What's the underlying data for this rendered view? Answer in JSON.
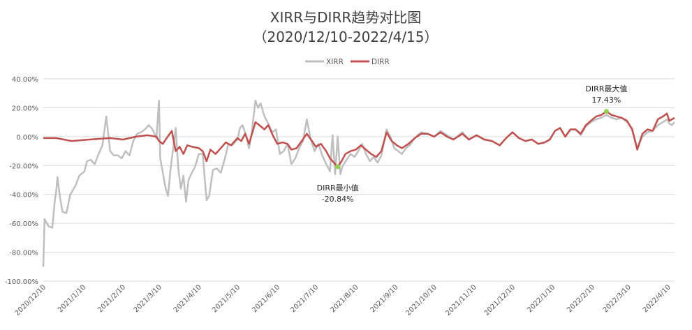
{
  "chart_data": {
    "type": "line",
    "title": "XIRR与DIRR趋势对比图",
    "subtitle": "（2020/12/10-2022/4/15）",
    "legend_position": "top",
    "grid": true,
    "x_range": [
      "2020/12/10",
      "2022/4/15"
    ],
    "y_range": [
      -100,
      40
    ],
    "y_ticks": [
      "40.00%",
      "20.00%",
      "0.00%",
      "-20.00%",
      "-40.00%",
      "-60.00%",
      "-80.00%",
      "-100.00%"
    ],
    "y_tick_values": [
      40,
      20,
      0,
      -20,
      -40,
      -60,
      -80,
      -100
    ],
    "x_ticks": [
      "2020/12/10",
      "2021/1/10",
      "2021/2/10",
      "2021/3/10",
      "2021/4/10",
      "2021/5/10",
      "2021/6/10",
      "2021/7/10",
      "2021/8/10",
      "2021/9/10",
      "2021/10/10",
      "2021/11/10",
      "2021/12/10",
      "2022/1/10",
      "2022/2/10",
      "2022/3/10",
      "2022/4/10"
    ],
    "series": [
      {
        "name": "XIRR",
        "color": "#bfbfbf",
        "points": [
          [
            "2020/12/10",
            -90
          ],
          [
            "2020/12/11",
            -57
          ],
          [
            "2020/12/14",
            -62
          ],
          [
            "2020/12/17",
            -63
          ],
          [
            "2020/12/19",
            -44
          ],
          [
            "2020/12/20",
            -38
          ],
          [
            "2020/12/21",
            -28
          ],
          [
            "2020/12/23",
            -42
          ],
          [
            "2020/12/25",
            -52
          ],
          [
            "2020/12/28",
            -53
          ],
          [
            "2020/12/31",
            -40
          ],
          [
            "2021/1/4",
            -34
          ],
          [
            "2021/1/7",
            -27
          ],
          [
            "2021/1/11",
            -24
          ],
          [
            "2021/1/13",
            -17
          ],
          [
            "2021/1/16",
            -16
          ],
          [
            "2021/1/19",
            -19
          ],
          [
            "2021/1/22",
            -12
          ],
          [
            "2021/1/25",
            -6
          ],
          [
            "2021/1/28",
            14
          ],
          [
            "2021/1/31",
            -10
          ],
          [
            "2021/2/3",
            -13
          ],
          [
            "2021/2/6",
            -13
          ],
          [
            "2021/2/9",
            -15
          ],
          [
            "2021/2/12",
            -10
          ],
          [
            "2021/2/15",
            -13
          ],
          [
            "2021/2/18",
            -3
          ],
          [
            "2021/2/21",
            2
          ],
          [
            "2021/2/24",
            3
          ],
          [
            "2021/2/27",
            5
          ],
          [
            "2021/3/2",
            8
          ],
          [
            "2021/3/5",
            5
          ],
          [
            "2021/3/8",
            -1
          ],
          [
            "2021/3/10",
            25
          ],
          [
            "2021/3/11",
            -15
          ],
          [
            "2021/3/13",
            -25
          ],
          [
            "2021/3/15",
            -35
          ],
          [
            "2021/3/17",
            -41
          ],
          [
            "2021/3/19",
            -22
          ],
          [
            "2021/3/21",
            -8
          ],
          [
            "2021/3/23",
            6
          ],
          [
            "2021/3/25",
            -22
          ],
          [
            "2021/3/27",
            -36
          ],
          [
            "2021/3/29",
            -27
          ],
          [
            "2021/3/31",
            -45
          ],
          [
            "2021/4/2",
            -30
          ],
          [
            "2021/4/4",
            -26
          ],
          [
            "2021/4/7",
            -21
          ],
          [
            "2021/4/10",
            -12
          ],
          [
            "2021/4/13",
            -12
          ],
          [
            "2021/4/16",
            -44
          ],
          [
            "2021/4/18",
            -41
          ],
          [
            "2021/4/21",
            -23
          ],
          [
            "2021/4/24",
            -22
          ],
          [
            "2021/4/27",
            -25
          ],
          [
            "2021/4/30",
            -16
          ],
          [
            "2021/5/3",
            -5
          ],
          [
            "2021/5/6",
            -6
          ],
          [
            "2021/5/10",
            -2
          ],
          [
            "2021/5/12",
            6
          ],
          [
            "2021/5/14",
            8
          ],
          [
            "2021/5/17",
            0
          ],
          [
            "2021/5/19",
            -8
          ],
          [
            "2021/5/21",
            2
          ],
          [
            "2021/5/24",
            25
          ],
          [
            "2021/5/26",
            20
          ],
          [
            "2021/5/28",
            23
          ],
          [
            "2021/5/31",
            14
          ],
          [
            "2021/6/3",
            9
          ],
          [
            "2021/6/6",
            3
          ],
          [
            "2021/6/9",
            5
          ],
          [
            "2021/6/12",
            -12
          ],
          [
            "2021/6/15",
            -10
          ],
          [
            "2021/6/18",
            -5
          ],
          [
            "2021/6/21",
            -19
          ],
          [
            "2021/6/24",
            -15
          ],
          [
            "2021/6/27",
            -8
          ],
          [
            "2021/6/30",
            -3
          ],
          [
            "2021/7/3",
            12
          ],
          [
            "2021/7/6",
            -2
          ],
          [
            "2021/7/9",
            -10
          ],
          [
            "2021/7/12",
            -5
          ],
          [
            "2021/7/15",
            -13
          ],
          [
            "2021/7/18",
            -19
          ],
          [
            "2021/7/21",
            -24
          ],
          [
            "2021/7/23",
            1
          ],
          [
            "2021/7/25",
            -26
          ],
          [
            "2021/7/27",
            0
          ],
          [
            "2021/7/29",
            -26
          ],
          [
            "2021/7/31",
            -20
          ],
          [
            "2021/8/3",
            -16
          ],
          [
            "2021/8/6",
            -12
          ],
          [
            "2021/8/9",
            -14
          ],
          [
            "2021/8/12",
            -10
          ],
          [
            "2021/8/15",
            -5
          ],
          [
            "2021/8/18",
            -12
          ],
          [
            "2021/8/21",
            -17
          ],
          [
            "2021/8/24",
            -14
          ],
          [
            "2021/8/27",
            -18
          ],
          [
            "2021/8/30",
            -13
          ],
          [
            "2021/9/3",
            5
          ],
          [
            "2021/9/6",
            0
          ],
          [
            "2021/9/9",
            -8
          ],
          [
            "2021/9/12",
            -10
          ],
          [
            "2021/9/15",
            -12
          ],
          [
            "2021/9/18",
            -8
          ],
          [
            "2021/9/21",
            -6
          ],
          [
            "2021/9/24",
            -2
          ],
          [
            "2021/9/27",
            1
          ],
          [
            "2021/9/30",
            3
          ],
          [
            "2021/10/5",
            2
          ],
          [
            "2021/10/10",
            0
          ],
          [
            "2021/10/15",
            4
          ],
          [
            "2021/10/20",
            1
          ],
          [
            "2021/10/25",
            -2
          ],
          [
            "2021/11/1",
            3
          ],
          [
            "2021/11/6",
            -2
          ],
          [
            "2021/11/12",
            1
          ],
          [
            "2021/11/18",
            -2
          ],
          [
            "2021/11/24",
            -3
          ],
          [
            "2021/11/30",
            -6
          ],
          [
            "2021/12/5",
            -1
          ],
          [
            "2021/12/10",
            3
          ],
          [
            "2021/12/15",
            -1
          ],
          [
            "2021/12/20",
            -3
          ],
          [
            "2021/12/25",
            -2
          ],
          [
            "2021/12/30",
            -5
          ],
          [
            "2022/1/4",
            -4
          ],
          [
            "2022/1/8",
            -2
          ],
          [
            "2022/1/12",
            4
          ],
          [
            "2022/1/16",
            6
          ],
          [
            "2022/1/20",
            0
          ],
          [
            "2022/1/24",
            5
          ],
          [
            "2022/1/28",
            5
          ],
          [
            "2022/2/1",
            1
          ],
          [
            "2022/2/5",
            7
          ],
          [
            "2022/2/9",
            10
          ],
          [
            "2022/2/13",
            12
          ],
          [
            "2022/2/17",
            13
          ],
          [
            "2022/2/21",
            15
          ],
          [
            "2022/2/25",
            13
          ],
          [
            "2022/3/1",
            12
          ],
          [
            "2022/3/5",
            13
          ],
          [
            "2022/3/9",
            10
          ],
          [
            "2022/3/13",
            6
          ],
          [
            "2022/3/17",
            -8
          ],
          [
            "2022/3/21",
            0
          ],
          [
            "2022/3/25",
            3
          ],
          [
            "2022/3/29",
            4
          ],
          [
            "2022/4/2",
            8
          ],
          [
            "2022/4/6",
            10
          ],
          [
            "2022/4/9",
            12
          ],
          [
            "2022/4/11",
            9
          ],
          [
            "2022/4/13",
            8
          ],
          [
            "2022/4/15",
            10
          ]
        ]
      },
      {
        "name": "DIRR",
        "color": "#c0504d",
        "points": [
          [
            "2020/12/10",
            -1
          ],
          [
            "2020/12/20",
            -1
          ],
          [
            "2021/1/1",
            -3
          ],
          [
            "2021/1/15",
            -2
          ],
          [
            "2021/1/31",
            -1
          ],
          [
            "2021/2/10",
            -2
          ],
          [
            "2021/2/20",
            0
          ],
          [
            "2021/3/1",
            1
          ],
          [
            "2021/3/8",
            0
          ],
          [
            "2021/3/10",
            -3
          ],
          [
            "2021/3/13",
            -5
          ],
          [
            "2021/3/16",
            -1
          ],
          [
            "2021/3/20",
            4
          ],
          [
            "2021/3/23",
            -10
          ],
          [
            "2021/3/26",
            -7
          ],
          [
            "2021/3/29",
            -12
          ],
          [
            "2021/4/1",
            -6
          ],
          [
            "2021/4/5",
            -7
          ],
          [
            "2021/4/10",
            -8
          ],
          [
            "2021/4/13",
            -10
          ],
          [
            "2021/4/16",
            -17
          ],
          [
            "2021/4/19",
            -9
          ],
          [
            "2021/4/23",
            -12
          ],
          [
            "2021/4/27",
            -8
          ],
          [
            "2021/5/1",
            -4
          ],
          [
            "2021/5/5",
            -6
          ],
          [
            "2021/5/10",
            -1
          ],
          [
            "2021/5/13",
            -3
          ],
          [
            "2021/5/16",
            2
          ],
          [
            "2021/5/19",
            -5
          ],
          [
            "2021/5/21",
            1
          ],
          [
            "2021/5/24",
            10
          ],
          [
            "2021/5/27",
            8
          ],
          [
            "2021/5/31",
            5
          ],
          [
            "2021/6/3",
            8
          ],
          [
            "2021/6/7",
            0
          ],
          [
            "2021/6/10",
            -5
          ],
          [
            "2021/6/14",
            -4
          ],
          [
            "2021/6/18",
            -5
          ],
          [
            "2021/6/21",
            -9
          ],
          [
            "2021/6/25",
            -8
          ],
          [
            "2021/6/29",
            -3
          ],
          [
            "2021/7/3",
            2
          ],
          [
            "2021/7/7",
            -3
          ],
          [
            "2021/7/10",
            -7
          ],
          [
            "2021/7/14",
            -5
          ],
          [
            "2021/7/18",
            -10
          ],
          [
            "2021/7/21",
            -15
          ],
          [
            "2021/7/24",
            -18
          ],
          [
            "2021/7/27",
            -20.84
          ],
          [
            "2021/7/30",
            -17
          ],
          [
            "2021/8/2",
            -12
          ],
          [
            "2021/8/6",
            -10
          ],
          [
            "2021/8/10",
            -9
          ],
          [
            "2021/8/14",
            -6
          ],
          [
            "2021/8/18",
            -9
          ],
          [
            "2021/8/22",
            -12
          ],
          [
            "2021/8/26",
            -14
          ],
          [
            "2021/8/30",
            -10
          ],
          [
            "2021/9/3",
            3
          ],
          [
            "2021/9/7",
            -3
          ],
          [
            "2021/9/11",
            -6
          ],
          [
            "2021/9/15",
            -8
          ],
          [
            "2021/9/20",
            -5
          ],
          [
            "2021/9/25",
            -1
          ],
          [
            "2021/9/30",
            2
          ],
          [
            "2021/10/5",
            2
          ],
          [
            "2021/10/10",
            0
          ],
          [
            "2021/10/15",
            3
          ],
          [
            "2021/10/20",
            0
          ],
          [
            "2021/10/25",
            -2
          ],
          [
            "2021/11/1",
            2
          ],
          [
            "2021/11/6",
            -2
          ],
          [
            "2021/11/12",
            1
          ],
          [
            "2021/11/18",
            -2
          ],
          [
            "2021/11/24",
            -3
          ],
          [
            "2021/11/30",
            -6
          ],
          [
            "2021/12/5",
            -1
          ],
          [
            "2021/12/10",
            3
          ],
          [
            "2021/12/15",
            -1
          ],
          [
            "2021/12/20",
            -3
          ],
          [
            "2021/12/25",
            -2
          ],
          [
            "2021/12/30",
            -5
          ],
          [
            "2022/1/4",
            -4
          ],
          [
            "2022/1/8",
            -2
          ],
          [
            "2022/1/12",
            4
          ],
          [
            "2022/1/16",
            6
          ],
          [
            "2022/1/20",
            0
          ],
          [
            "2022/1/24",
            5
          ],
          [
            "2022/1/28",
            5
          ],
          [
            "2022/2/1",
            2
          ],
          [
            "2022/2/5",
            8
          ],
          [
            "2022/2/9",
            11
          ],
          [
            "2022/2/13",
            14
          ],
          [
            "2022/2/17",
            15
          ],
          [
            "2022/2/21",
            17.43
          ],
          [
            "2022/2/25",
            15
          ],
          [
            "2022/3/1",
            14
          ],
          [
            "2022/3/5",
            13
          ],
          [
            "2022/3/9",
            11
          ],
          [
            "2022/3/13",
            5
          ],
          [
            "2022/3/17",
            -9
          ],
          [
            "2022/3/21",
            2
          ],
          [
            "2022/3/25",
            5
          ],
          [
            "2022/3/29",
            4
          ],
          [
            "2022/4/2",
            12
          ],
          [
            "2022/4/6",
            14
          ],
          [
            "2022/4/9",
            16
          ],
          [
            "2022/4/11",
            11
          ],
          [
            "2022/4/13",
            12
          ],
          [
            "2022/4/15",
            13
          ]
        ]
      }
    ],
    "annotations": [
      {
        "label": "DIRR最大值",
        "value_text": "17.43%",
        "x": "2022/2/21",
        "y": 17.43,
        "color": "#92d050"
      },
      {
        "label": "DIRR最小值",
        "value_text": "-20.84%",
        "x": "2021/7/27",
        "y": -20.84,
        "color": "#92d050"
      }
    ]
  }
}
